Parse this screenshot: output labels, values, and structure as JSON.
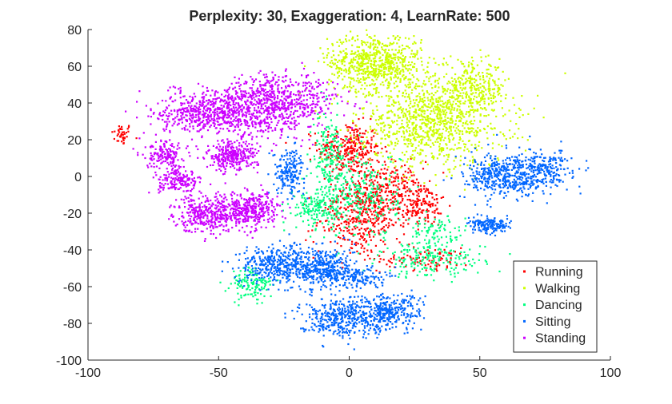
{
  "chart_data": {
    "type": "scatter",
    "title": "Perplexity: 30, Exaggeration: 4, LearnRate: 500",
    "xlabel": "",
    "ylabel": "",
    "xlim": [
      -100,
      100
    ],
    "ylim": [
      -100,
      80
    ],
    "xticks": [
      -100,
      -50,
      0,
      50,
      100
    ],
    "yticks": [
      80,
      60,
      40,
      20,
      0,
      -20,
      -40,
      -60,
      -80,
      -100
    ],
    "xtick_labels": [
      "-100",
      "-50",
      "0",
      "50",
      "100"
    ],
    "ytick_labels": [
      "80",
      "60",
      "40",
      "20",
      "0",
      "-20",
      "-40",
      "-60",
      "-80",
      "-100"
    ],
    "grid": false,
    "legend_position": "bottom-right",
    "series": [
      {
        "name": "Running",
        "color": "#ff0000",
        "clusters": [
          {
            "cx": -87,
            "cy": 23,
            "sx": 2,
            "sy": 3,
            "n": 40
          },
          {
            "cx": 0,
            "cy": 15,
            "sx": 6,
            "sy": 7,
            "n": 280
          },
          {
            "cx": 12,
            "cy": -10,
            "sx": 8,
            "sy": 9,
            "n": 380
          },
          {
            "cx": 3,
            "cy": -25,
            "sx": 8,
            "sy": 10,
            "n": 260
          },
          {
            "cx": 27,
            "cy": -15,
            "sx": 5,
            "sy": 6,
            "n": 140
          },
          {
            "cx": 30,
            "cy": -45,
            "sx": 9,
            "sy": 3,
            "n": 90
          }
        ]
      },
      {
        "name": "Walking",
        "color": "#ccff00",
        "clusters": [
          {
            "cx": 10,
            "cy": 62,
            "sx": 9,
            "sy": 8,
            "n": 700
          },
          {
            "cx": 32,
            "cy": 30,
            "sx": 14,
            "sy": 12,
            "n": 1000
          },
          {
            "cx": 48,
            "cy": 48,
            "sx": 6,
            "sy": 7,
            "n": 250
          }
        ]
      },
      {
        "name": "Dancing",
        "color": "#00ff80",
        "clusters": [
          {
            "cx": -8,
            "cy": 10,
            "sx": 3,
            "sy": 12,
            "n": 180
          },
          {
            "cx": -13,
            "cy": -17,
            "sx": 5,
            "sy": 5,
            "n": 150
          },
          {
            "cx": 5,
            "cy": -10,
            "sx": 7,
            "sy": 12,
            "n": 260
          },
          {
            "cx": 32,
            "cy": -45,
            "sx": 10,
            "sy": 5,
            "n": 200
          },
          {
            "cx": 33,
            "cy": -30,
            "sx": 6,
            "sy": 4,
            "n": 80
          },
          {
            "cx": -37,
            "cy": -59,
            "sx": 4,
            "sy": 5,
            "n": 130
          }
        ]
      },
      {
        "name": "Sitting",
        "color": "#0066ff",
        "clusters": [
          {
            "cx": -23,
            "cy": 3,
            "sx": 3,
            "sy": 6,
            "n": 180
          },
          {
            "cx": -28,
            "cy": -48,
            "sx": 7,
            "sy": 5,
            "n": 350
          },
          {
            "cx": -10,
            "cy": -50,
            "sx": 6,
            "sy": 6,
            "n": 400
          },
          {
            "cx": 4,
            "cy": -55,
            "sx": 5,
            "sy": 3,
            "n": 120
          },
          {
            "cx": -5,
            "cy": -77,
            "sx": 7,
            "sy": 5,
            "n": 330
          },
          {
            "cx": 14,
            "cy": -74,
            "sx": 7,
            "sy": 5,
            "n": 340
          },
          {
            "cx": 60,
            "cy": 0,
            "sx": 8,
            "sy": 6,
            "n": 450
          },
          {
            "cx": 75,
            "cy": 5,
            "sx": 5,
            "sy": 5,
            "n": 200
          },
          {
            "cx": 54,
            "cy": -27,
            "sx": 4,
            "sy": 2,
            "n": 160
          }
        ]
      },
      {
        "name": "Standing",
        "color": "#cc00ff",
        "clusters": [
          {
            "cx": -53,
            "cy": 35,
            "sx": 10,
            "sy": 6,
            "n": 600
          },
          {
            "cx": -27,
            "cy": 40,
            "sx": 11,
            "sy": 8,
            "n": 700
          },
          {
            "cx": -45,
            "cy": 11,
            "sx": 5,
            "sy": 4,
            "n": 300
          },
          {
            "cx": -70,
            "cy": 11,
            "sx": 4,
            "sy": 4,
            "n": 160
          },
          {
            "cx": -65,
            "cy": -3,
            "sx": 4,
            "sy": 3,
            "n": 160
          },
          {
            "cx": -53,
            "cy": -20,
            "sx": 7,
            "sy": 5,
            "n": 400
          },
          {
            "cx": -37,
            "cy": -18,
            "sx": 5,
            "sy": 5,
            "n": 300
          }
        ]
      }
    ]
  }
}
